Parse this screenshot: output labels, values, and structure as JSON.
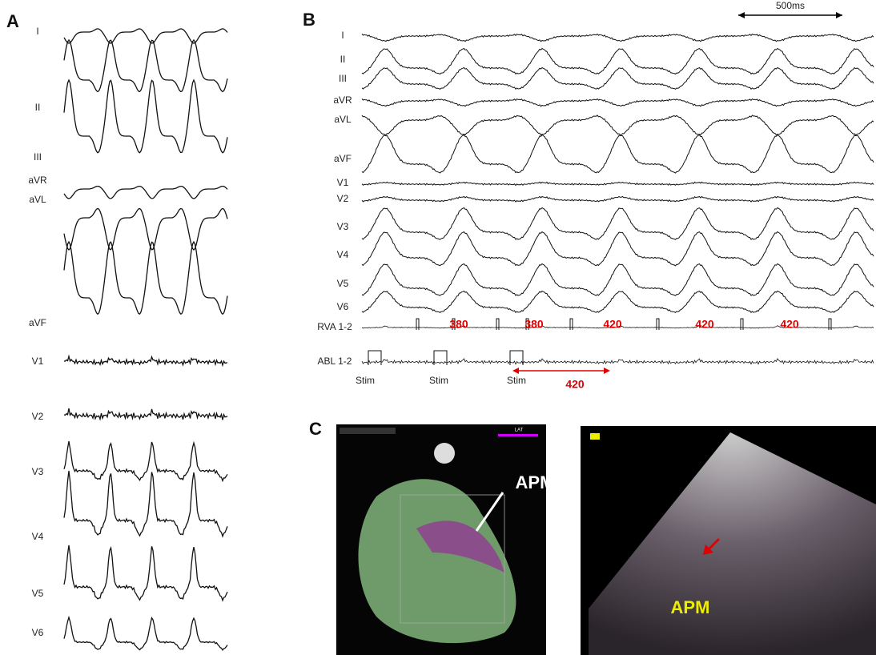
{
  "panel_a": {
    "label": "A",
    "leads": [
      "I",
      "II",
      "III",
      "aVR",
      "aVL",
      "aVF",
      "V1",
      "V2",
      "V3",
      "V4",
      "V5",
      "V6"
    ]
  },
  "panel_b": {
    "label": "B",
    "scale_bar": "500ms",
    "leads": [
      "I",
      "II",
      "III",
      "aVR",
      "aVL",
      "aVF",
      "V1",
      "V2",
      "V3",
      "V4",
      "V5",
      "V6"
    ],
    "channels": [
      "RVA 1-2",
      "ABL 1-2"
    ],
    "intervals": [
      380,
      380,
      420,
      420,
      420
    ],
    "stim_labels": [
      "Stim",
      "Stim",
      "Stim"
    ],
    "stim_interval": 420
  },
  "panel_c": {
    "label": "C",
    "map_label": "APM",
    "echo_label": "APM",
    "color_bar": "LAT"
  }
}
